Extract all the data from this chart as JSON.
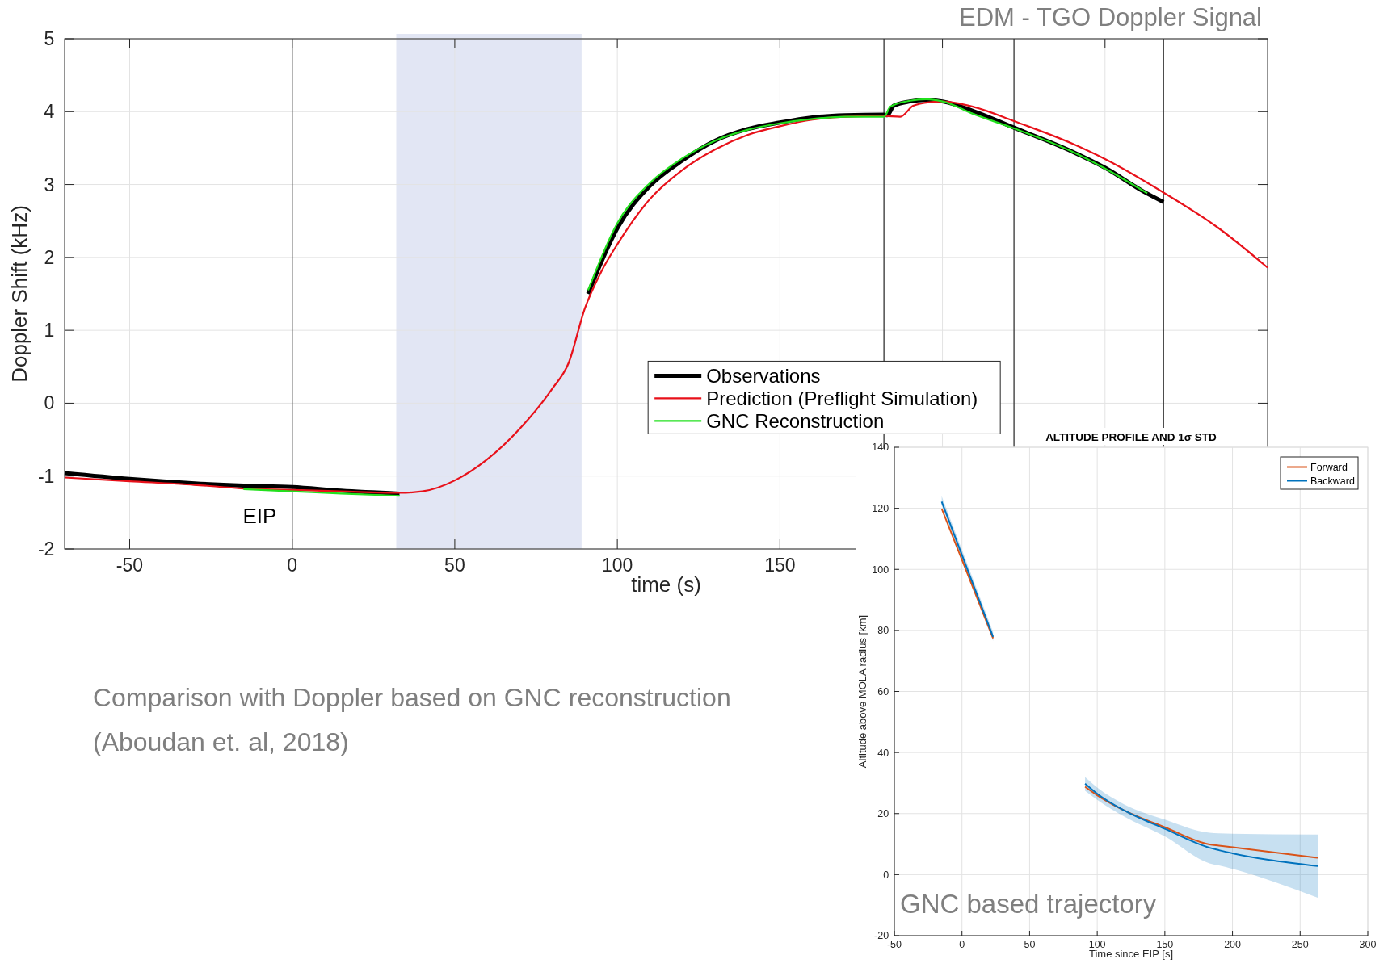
{
  "chart_data": [
    {
      "type": "line",
      "title": "EDM - TGO Doppler Signal",
      "xlabel": "time (s)",
      "ylabel": "Doppler Shift (kHz)",
      "xlim": [
        -70,
        300
      ],
      "ylim": [
        -2,
        5
      ],
      "xticks": [
        -50,
        0,
        50,
        100,
        150,
        {
          "value": 200,
          "label": null
        },
        {
          "value": 250,
          "label": null
        }
      ],
      "yticks": [
        -2,
        -1,
        0,
        1,
        2,
        3,
        4,
        5
      ],
      "grid": true,
      "legend": "right",
      "ref_lines": [
        {
          "axis": "x",
          "value": 0,
          "color": "#333333"
        },
        {
          "axis": "x",
          "value": 182,
          "color": "#333333"
        },
        {
          "axis": "x",
          "value": 222,
          "color": "#333333"
        },
        {
          "axis": "x",
          "value": 268,
          "color": "#333333"
        }
      ],
      "bands": [
        {
          "axis": "x",
          "from": 32,
          "to": 89,
          "color": "#e2e6f4"
        }
      ],
      "annotations": [
        "EIP",
        "Comparison with Doppler based on GNC  reconstruction",
        "(Aboudan et. al, 2018)"
      ],
      "series": [
        {
          "name": "Observations",
          "color": "#000000",
          "x": [
            -70,
            -50,
            -30,
            -15,
            0,
            15,
            33,
            60,
            91,
            100,
            110,
            120,
            130,
            140,
            150,
            160,
            170,
            182,
            183,
            185,
            190,
            195,
            200,
            210,
            222,
            240,
            250,
            262,
            268
          ],
          "values": [
            -0.96,
            -1.04,
            -1.1,
            -1.13,
            -1.15,
            -1.2,
            -1.24,
            null,
            1.5,
            2.4,
            2.98,
            3.33,
            3.6,
            3.76,
            3.85,
            3.92,
            3.95,
            3.96,
            3.95,
            4.08,
            4.14,
            4.16,
            4.14,
            4.0,
            3.78,
            3.45,
            3.23,
            2.9,
            2.76
          ]
        },
        {
          "name": "Prediction (Preflight Simulation)",
          "color": "#e8111a",
          "x": [
            -70,
            -50,
            -30,
            -15,
            0,
            15,
            33,
            40,
            50,
            60,
            70,
            80,
            85,
            90,
            95,
            100,
            110,
            120,
            130,
            140,
            150,
            160,
            170,
            182,
            187,
            191,
            196,
            200,
            210,
            222,
            240,
            250,
            268,
            285,
            300
          ],
          "values": [
            -1.02,
            -1.07,
            -1.12,
            -1.17,
            -1.19,
            -1.21,
            -1.23,
            -1.21,
            -1.06,
            -0.77,
            -0.35,
            0.2,
            0.55,
            1.3,
            1.8,
            2.18,
            2.8,
            3.2,
            3.48,
            3.68,
            3.8,
            3.89,
            3.93,
            3.94,
            3.93,
            4.08,
            4.13,
            4.14,
            4.06,
            3.87,
            3.56,
            3.35,
            2.89,
            2.4,
            1.86
          ]
        },
        {
          "name": "GNC Reconstruction",
          "color": "#22e01e",
          "x": [
            -15,
            0,
            15,
            33,
            60,
            91,
            100,
            110,
            120,
            130,
            140,
            150,
            160,
            170,
            182,
            184,
            190,
            195,
            200,
            210,
            222,
            240,
            250,
            263
          ],
          "values": [
            -1.18,
            -1.21,
            -1.24,
            -1.27,
            null,
            1.55,
            2.47,
            3.02,
            3.36,
            3.6,
            3.75,
            3.84,
            3.9,
            3.93,
            3.93,
            4.07,
            4.15,
            4.17,
            4.14,
            3.96,
            3.77,
            3.45,
            3.22,
            2.88
          ]
        }
      ]
    },
    {
      "type": "line",
      "title": "ALTITUDE PROFILE AND 1σ STD",
      "xlabel": "Time since EIP [s]",
      "ylabel": "Altitude above MOLA radius [km]",
      "xlim": [
        -50,
        300
      ],
      "ylim": [
        -20,
        140
      ],
      "xticks": [
        -50,
        0,
        50,
        100,
        150,
        200,
        250,
        300
      ],
      "yticks": [
        -20,
        0,
        20,
        40,
        60,
        80,
        100,
        120,
        140
      ],
      "grid": true,
      "legend": "top right",
      "annotations": [
        "GNC based trajectory"
      ],
      "series": [
        {
          "name": "Forward",
          "color": "#d95319",
          "x": [
            -15,
            23,
            60,
            91,
            100,
            120,
            150,
            183,
            190,
            263
          ],
          "values": [
            119.9,
            77.4,
            null,
            28.8,
            26,
            21,
            15.5,
            9.9,
            9.5,
            5.5
          ]
        },
        {
          "name": "Backward",
          "color": "#0072bd",
          "x": [
            -15,
            23,
            60,
            91,
            100,
            120,
            150,
            183,
            190,
            263
          ],
          "values": [
            122.2,
            77.9,
            null,
            29.8,
            26.5,
            21,
            15,
            8.8,
            8,
            2.8
          ],
          "lower": [
            121,
            76.5,
            null,
            27.5,
            24.5,
            19,
            12.5,
            3.7,
            3,
            -7.6
          ],
          "upper": [
            124,
            79.5,
            null,
            32,
            28.5,
            23,
            18,
            13.7,
            13.5,
            13.1
          ]
        }
      ]
    }
  ]
}
